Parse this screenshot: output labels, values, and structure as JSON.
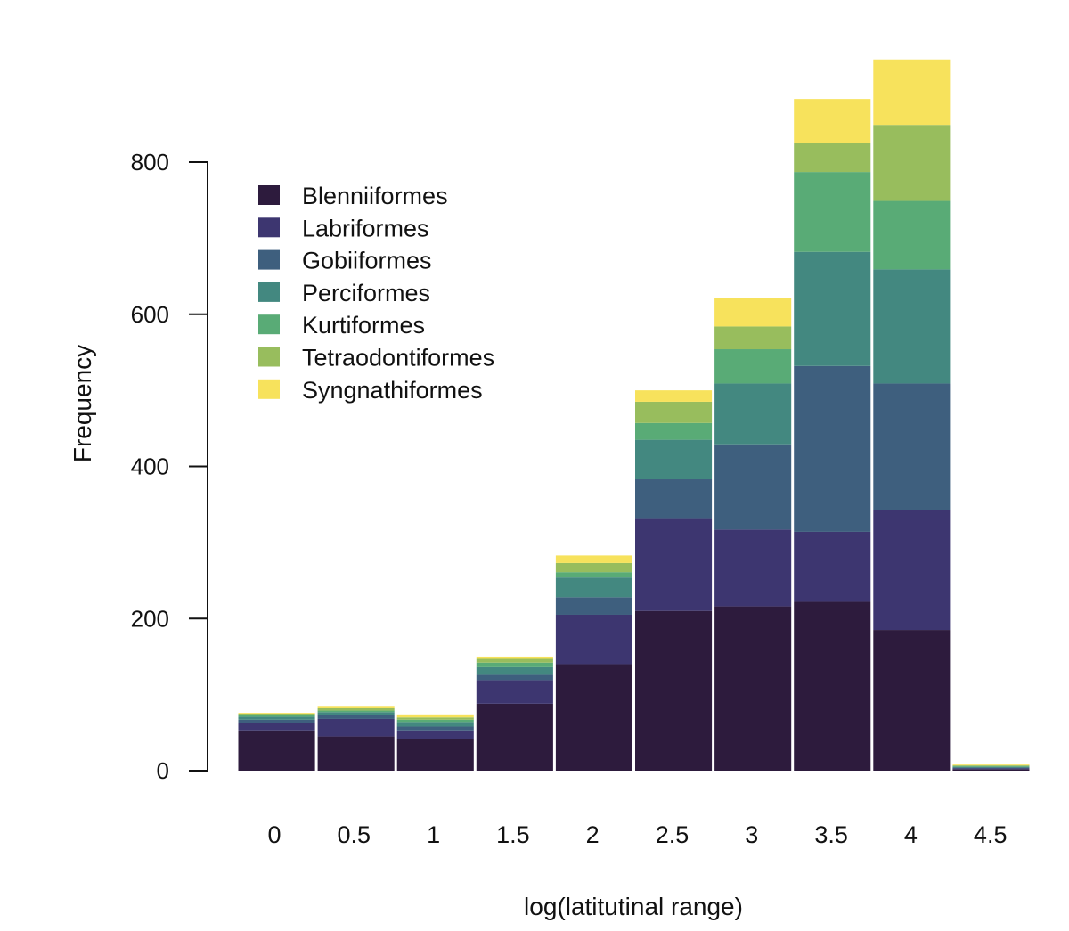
{
  "chart_data": {
    "type": "bar",
    "stacked": true,
    "xlabel": "log(latitutinal range)",
    "ylabel": "Frequency",
    "ylim": [
      0,
      1000
    ],
    "yticks": [
      0,
      200,
      400,
      600,
      800
    ],
    "categories": [
      "0",
      "0.5",
      "1",
      "1.5",
      "2",
      "2.5",
      "3",
      "3.5",
      "4",
      "4.5"
    ],
    "legend_position": "top-left",
    "grid": false,
    "series": [
      {
        "name": "Blenniiformes",
        "color": "#2d1b3d",
        "values": [
          53,
          45,
          41,
          88,
          140,
          210,
          216,
          222,
          185,
          2
        ]
      },
      {
        "name": "Labriformes",
        "color": "#3d3670",
        "values": [
          10,
          23,
          12,
          31,
          65,
          122,
          101,
          92,
          158,
          1
        ]
      },
      {
        "name": "Gobiiformes",
        "color": "#3e5f7e",
        "values": [
          4,
          5,
          5,
          7,
          23,
          51,
          112,
          218,
          166,
          1
        ]
      },
      {
        "name": "Perciformes",
        "color": "#438880",
        "values": [
          4,
          4,
          6,
          10,
          26,
          52,
          80,
          150,
          150,
          1
        ]
      },
      {
        "name": "Kurtiformes",
        "color": "#59ab76",
        "values": [
          2,
          2,
          3,
          6,
          7,
          22,
          45,
          105,
          90,
          1
        ]
      },
      {
        "name": "Tetraodontiformes",
        "color": "#98bd5d",
        "values": [
          2,
          3,
          3,
          5,
          12,
          28,
          30,
          38,
          100,
          1
        ]
      },
      {
        "name": "Syngnathiformes",
        "color": "#f7e25c",
        "values": [
          1,
          2,
          4,
          3,
          10,
          15,
          37,
          58,
          86,
          1
        ]
      }
    ]
  }
}
